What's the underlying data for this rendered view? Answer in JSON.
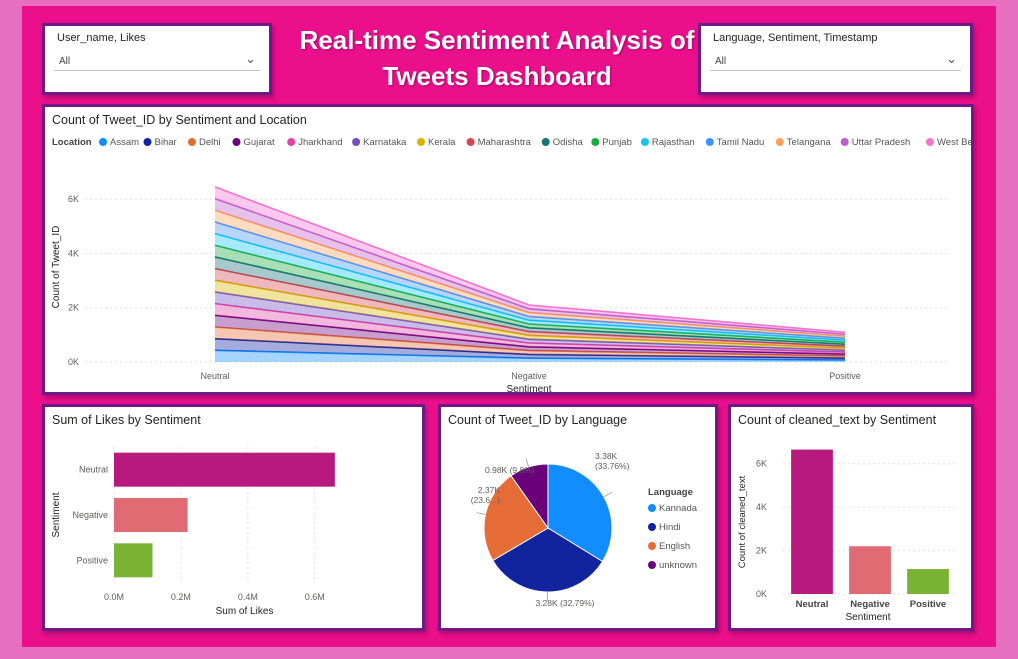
{
  "dashboard_title": "Real-time Sentiment Analysis of Tweets Dashboard",
  "slicers": [
    {
      "title": "User_name, Likes",
      "value": "All"
    },
    {
      "title": "Language, Sentiment, Timestamp",
      "value": "All"
    }
  ],
  "colors": {
    "background": "#ec0f8c",
    "card_border": "#6d1a86",
    "bar_neutral": "#b8197f",
    "bar_negative": "#e06b73",
    "bar_positive": "#7ab333"
  },
  "chart_data": [
    {
      "type": "area",
      "stacked": true,
      "title": "Count of Tweet_ID by Sentiment and Location",
      "xlabel": "Sentiment",
      "ylabel": "Count of Tweet_ID",
      "legend_title": "Location",
      "legend_position": "top",
      "categories": [
        "Neutral",
        "Negative",
        "Positive"
      ],
      "yticks": [
        "0K",
        "2K",
        "4K",
        "6K"
      ],
      "ylim": [
        0,
        7000
      ],
      "series": [
        {
          "name": "Assam",
          "color": "#118dff",
          "values": [
            430,
            140,
            73
          ]
        },
        {
          "name": "Bihar",
          "color": "#12239e",
          "values": [
            430,
            140,
            73
          ]
        },
        {
          "name": "Delhi",
          "color": "#e66c37",
          "values": [
            430,
            140,
            73
          ]
        },
        {
          "name": "Gujarat",
          "color": "#6b007b",
          "values": [
            430,
            140,
            73
          ]
        },
        {
          "name": "Jharkhand",
          "color": "#e044a7",
          "values": [
            430,
            140,
            73
          ]
        },
        {
          "name": "Karnataka",
          "color": "#744ec2",
          "values": [
            430,
            140,
            73
          ]
        },
        {
          "name": "Kerala",
          "color": "#d9b300",
          "values": [
            430,
            140,
            73
          ]
        },
        {
          "name": "Maharashtra",
          "color": "#d64550",
          "values": [
            430,
            140,
            73
          ]
        },
        {
          "name": "Odisha",
          "color": "#197278",
          "values": [
            430,
            140,
            73
          ]
        },
        {
          "name": "Punjab",
          "color": "#1aab40",
          "values": [
            430,
            140,
            73
          ]
        },
        {
          "name": "Rajasthan",
          "color": "#15c6f4",
          "values": [
            430,
            140,
            73
          ]
        },
        {
          "name": "Tamil Nadu",
          "color": "#4092ff",
          "values": [
            430,
            140,
            73
          ]
        },
        {
          "name": "Telangana",
          "color": "#ffa058",
          "values": [
            430,
            140,
            73
          ]
        },
        {
          "name": "Uttar Pradesh",
          "color": "#be5dc9",
          "values": [
            430,
            140,
            73
          ]
        },
        {
          "name": "West Bengal",
          "color": "#f472d0",
          "values": [
            430,
            140,
            73
          ]
        }
      ]
    },
    {
      "type": "bar",
      "orientation": "horizontal",
      "title": "Sum of Likes by Sentiment",
      "xlabel": "Sum of Likes",
      "ylabel": "Sentiment",
      "categories": [
        "Neutral",
        "Negative",
        "Positive"
      ],
      "values": [
        660000,
        220000,
        115000
      ],
      "xticks": [
        "0.0M",
        "0.2M",
        "0.4M",
        "0.6M"
      ],
      "xlim": [
        0,
        780000
      ]
    },
    {
      "type": "pie",
      "title": "Count of Tweet_ID by Language",
      "legend_title": "Language",
      "slices": [
        {
          "label": "Kannada",
          "value": 3380,
          "pct": 33.76,
          "data_label": "3.38K (33.76%)",
          "color": "#118dff"
        },
        {
          "label": "Hindi",
          "value": 3280,
          "pct": 32.79,
          "data_label": "3.28K (32.79%)",
          "color": "#12239e"
        },
        {
          "label": "English",
          "value": 2370,
          "pct": 23.65,
          "data_label": "2.37K (23.6...)",
          "color": "#e66c37"
        },
        {
          "label": "unknown",
          "value": 980,
          "pct": 9.8,
          "data_label": "0.98K (9.8%)",
          "color": "#6b007b"
        }
      ]
    },
    {
      "type": "bar",
      "orientation": "vertical",
      "title": "Count of cleaned_text by Sentiment",
      "xlabel": "Sentiment",
      "ylabel": "Count of cleaned_text",
      "categories": [
        "Neutral",
        "Negative",
        "Positive"
      ],
      "values": [
        6650,
        2200,
        1150
      ],
      "yticks": [
        "0K",
        "2K",
        "4K",
        "6K"
      ],
      "ylim": [
        0,
        7000
      ]
    }
  ]
}
